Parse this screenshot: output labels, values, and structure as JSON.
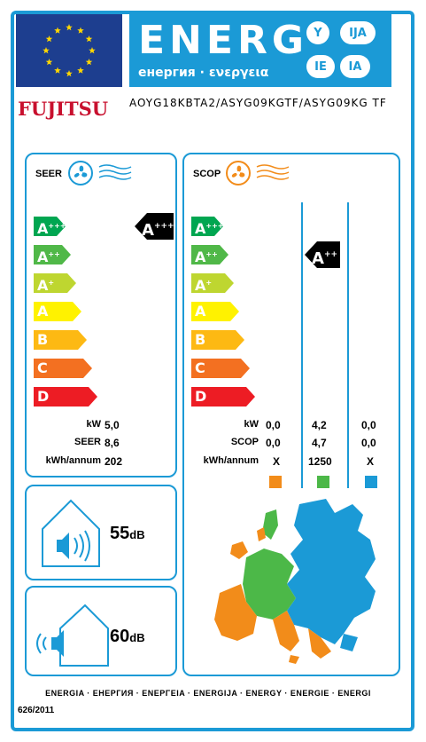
{
  "header": {
    "energ_title": "ENERG",
    "energ_subtitle": "енергия · ενεργεια",
    "lang_badges": [
      "Y",
      "IJA",
      "IE",
      "IA"
    ]
  },
  "brand": "FUJITSU",
  "model": "AOYG18KBTA2/ASYG09KGTF/ASYG09KG TF",
  "seer_panel": {
    "title": "SEER",
    "classes": [
      "A+++",
      "A++",
      "A+",
      "A",
      "B",
      "C",
      "D"
    ],
    "indicator_class": "A+++",
    "rows": [
      {
        "label": "kW",
        "value": "5,0"
      },
      {
        "label": "SEER",
        "value": "8,6"
      },
      {
        "label": "kWh/annum",
        "value": "202"
      }
    ]
  },
  "scop_panel": {
    "title": "SCOP",
    "classes": [
      "A+++",
      "A++",
      "A+",
      "A",
      "B",
      "C",
      "D"
    ],
    "indicator_class": "A++",
    "rows": [
      {
        "label": "kW",
        "values": [
          "0,0",
          "4,2",
          "0,0"
        ]
      },
      {
        "label": "SCOP",
        "values": [
          "0,0",
          "4,7",
          "0,0"
        ]
      },
      {
        "label": "kWh/annum",
        "values": [
          "X",
          "1250",
          "X"
        ]
      }
    ],
    "zone_colors": [
      "#f28c1a",
      "#4cb848",
      "#1b9ad6"
    ]
  },
  "noise_indoor": {
    "value": "55",
    "unit": "dB"
  },
  "noise_outdoor": {
    "value": "60",
    "unit": "dB"
  },
  "footer": {
    "languages": "ENERGIA · ЕНЕРГИЯ · ENEPΓEIA · ENERGIJA · ENERGY · ENERGIE · ENERGI",
    "regulation": "626/2011"
  },
  "colors": {
    "frame": "#1b9ad6",
    "eu_blue": "#1d3e8f",
    "class_colors": [
      "#00a651",
      "#50b848",
      "#bed630",
      "#fff200",
      "#fdb913",
      "#f37021",
      "#ed1c24"
    ]
  }
}
